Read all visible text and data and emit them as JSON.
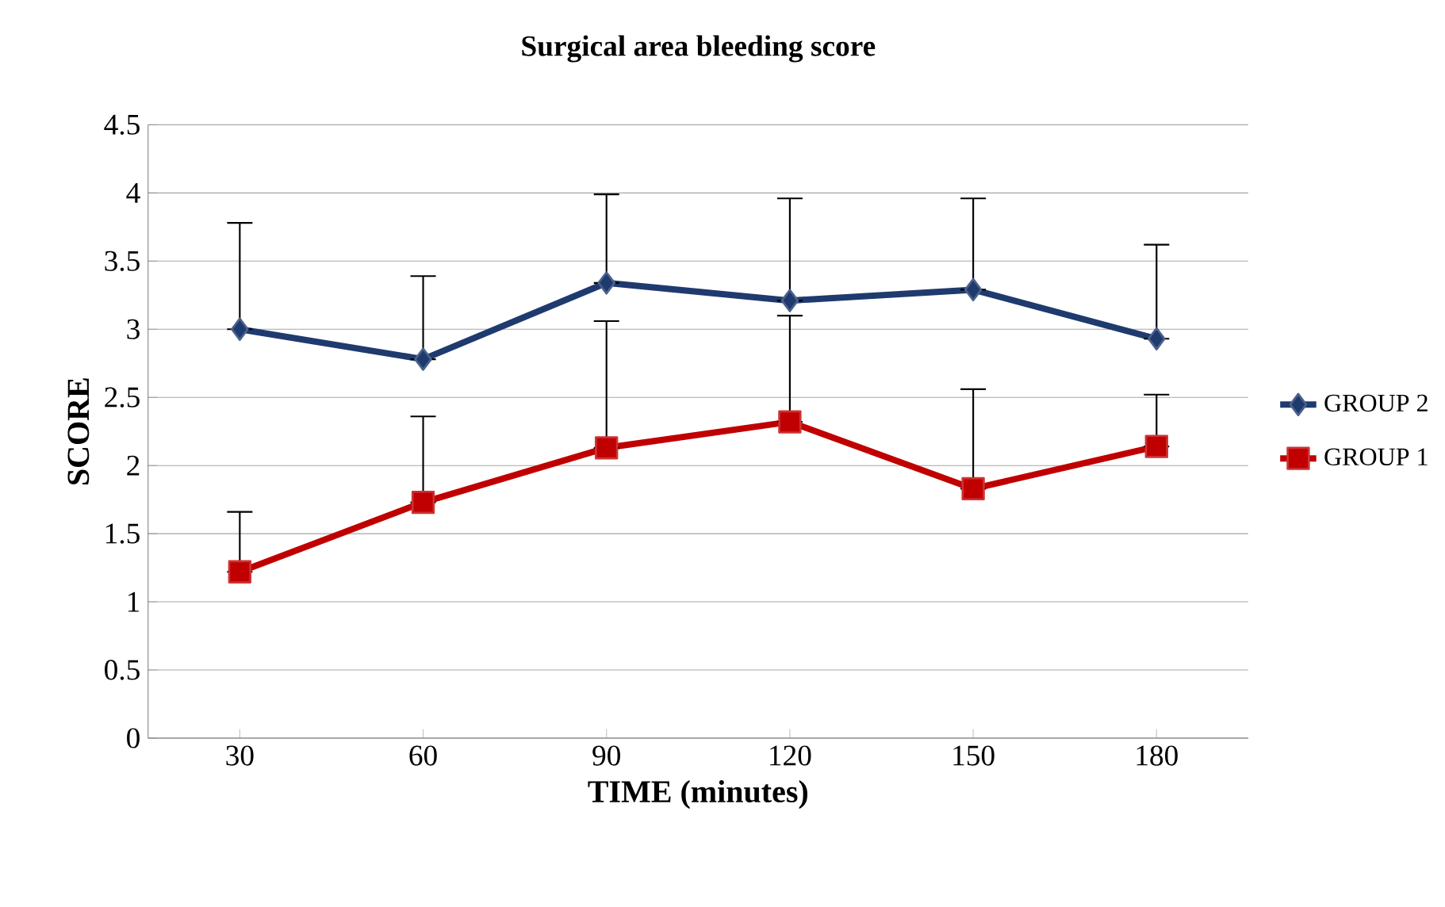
{
  "chart_data": {
    "type": "line",
    "title": "Surgical area bleeding score",
    "xlabel": "TIME (minutes)",
    "ylabel": "SCORE",
    "categories": [
      "30",
      "60",
      "90",
      "120",
      "150",
      "180"
    ],
    "series": [
      {
        "name": "GROUP 2",
        "color": "#1f3a6e",
        "marker": "diamond",
        "values": [
          3.0,
          2.78,
          3.34,
          3.21,
          3.29,
          2.93
        ],
        "errors": [
          [
            3.0,
            3.78
          ],
          [
            2.78,
            3.39
          ],
          [
            3.34,
            3.99
          ],
          [
            3.21,
            3.96
          ],
          [
            3.29,
            3.96
          ],
          [
            2.93,
            3.62
          ]
        ]
      },
      {
        "name": "GROUP 1",
        "color": "#c00000",
        "marker": "square",
        "values": [
          1.22,
          1.73,
          2.13,
          2.32,
          1.83,
          2.14
        ],
        "errors": [
          [
            1.22,
            1.66
          ],
          [
            1.73,
            2.36
          ],
          [
            2.13,
            3.06
          ],
          [
            2.32,
            3.1
          ],
          [
            1.83,
            2.56
          ],
          [
            2.14,
            2.52
          ]
        ]
      }
    ],
    "ylim": [
      0,
      4.5
    ],
    "yticks": [
      0,
      0.5,
      1,
      1.5,
      2,
      2.5,
      3,
      3.5,
      4,
      4.5
    ],
    "grid": "y",
    "legend": "right",
    "line_style": "solid"
  }
}
